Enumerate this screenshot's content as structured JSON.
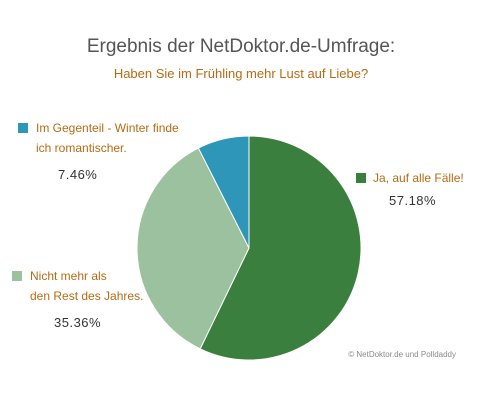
{
  "chart_data": {
    "type": "pie",
    "title": "Ergebnis der NetDoktor.de-Umfrage:",
    "subtitle": "Haben Sie im Frühling mehr Lust auf Liebe?",
    "slices": [
      {
        "label": "Ja, auf alle Fälle!",
        "value": 57.18,
        "display": "57.18%",
        "color": "#3a7f3d"
      },
      {
        "label": "Nicht mehr als\nden Rest des Jahres.",
        "value": 35.36,
        "display": "35.36%",
        "color": "#9cc19f"
      },
      {
        "label": "Im Gegenteil - Winter finde\nich romantischer.",
        "value": 7.46,
        "display": "7.46%",
        "color": "#2e97b9"
      }
    ],
    "legend_placement": "around"
  },
  "credit": "© NetDoktor.de und Polldaddy"
}
